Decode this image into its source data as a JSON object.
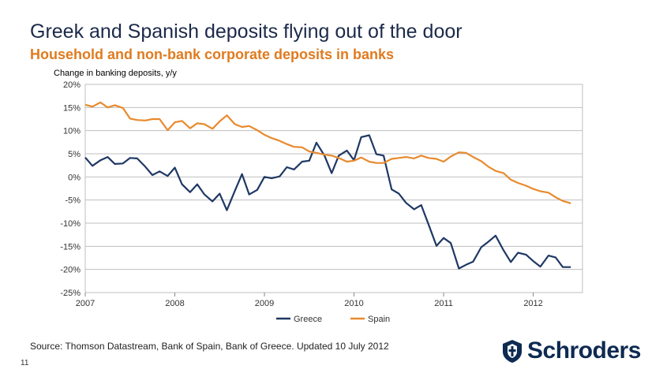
{
  "slide": {
    "title": "Greek and Spanish deposits flying out of the door",
    "subtitle": "Household and non-bank corporate deposits in banks",
    "source": "Source: Thomson Datastream, Bank of Spain, Bank of Greece. Updated 10 July 2012",
    "page_number": "11",
    "logo_text": "Schroders"
  },
  "colors": {
    "greece": "#1f3864",
    "spain": "#e88a2e",
    "grid": "#bfbfbf",
    "axis_text": "#333333"
  },
  "chart_data": {
    "type": "line",
    "title": "",
    "ylabel": "Change in banking deposits, y/y",
    "xlabel": "",
    "ylim": [
      -25,
      20
    ],
    "xlim": [
      2007,
      2012.55
    ],
    "yticks": [
      20,
      15,
      10,
      5,
      0,
      -5,
      -10,
      -15,
      -20,
      -25
    ],
    "ytick_labels": [
      "20%",
      "15%",
      "10%",
      "5%",
      "0%",
      "-5%",
      "-10%",
      "-15%",
      "-20%",
      "-25%"
    ],
    "xticks": [
      2007,
      2008,
      2009,
      2010,
      2011,
      2012
    ],
    "xtick_labels": [
      "2007",
      "2008",
      "2009",
      "2010",
      "2011",
      "2012"
    ],
    "grid": "horizontal",
    "legend_position": "bottom",
    "series": [
      {
        "name": "Greece",
        "x": [
          2007.0,
          2007.08,
          2007.17,
          2007.25,
          2007.33,
          2007.42,
          2007.5,
          2007.58,
          2007.67,
          2007.75,
          2007.83,
          2007.92,
          2008.0,
          2008.08,
          2008.17,
          2008.25,
          2008.33,
          2008.42,
          2008.5,
          2008.58,
          2008.67,
          2008.75,
          2008.83,
          2008.92,
          2009.0,
          2009.08,
          2009.17,
          2009.25,
          2009.33,
          2009.42,
          2009.5,
          2009.58,
          2009.67,
          2009.75,
          2009.83,
          2009.92,
          2010.0,
          2010.08,
          2010.17,
          2010.25,
          2010.33,
          2010.42,
          2010.5,
          2010.58,
          2010.67,
          2010.75,
          2010.83,
          2010.92,
          2011.0,
          2011.08,
          2011.17,
          2011.25,
          2011.33,
          2011.42,
          2011.5,
          2011.58,
          2011.67,
          2011.75,
          2011.83,
          2011.92,
          2012.0,
          2012.08,
          2012.17,
          2012.25,
          2012.33,
          2012.42
        ],
        "values": [
          4.2,
          2.4,
          3.6,
          4.3,
          2.8,
          2.9,
          4.1,
          4.0,
          2.2,
          0.4,
          1.2,
          0.2,
          2.0,
          -1.6,
          -3.3,
          -1.6,
          -3.8,
          -5.3,
          -3.6,
          -7.2,
          -3.0,
          0.6,
          -3.8,
          -2.8,
          0.0,
          -0.3,
          0.1,
          2.1,
          1.6,
          3.3,
          3.5,
          7.4,
          4.6,
          0.8,
          4.6,
          5.7,
          3.6,
          8.6,
          9.0,
          4.9,
          4.6,
          -2.7,
          -3.6,
          -5.6,
          -7.0,
          -6.1,
          -10.2,
          -14.9,
          -13.2,
          -14.3,
          -19.8,
          -19.0,
          -18.3,
          -15.2,
          -14.0,
          -12.7,
          -15.9,
          -18.4,
          -16.4,
          -16.8,
          -18.2,
          -19.4,
          -17.0,
          -17.4,
          -19.5,
          -19.5
        ]
      },
      {
        "name": "Spain",
        "x": [
          2007.0,
          2007.08,
          2007.17,
          2007.25,
          2007.33,
          2007.42,
          2007.5,
          2007.58,
          2007.67,
          2007.75,
          2007.83,
          2007.92,
          2008.0,
          2008.08,
          2008.17,
          2008.25,
          2008.33,
          2008.42,
          2008.5,
          2008.58,
          2008.67,
          2008.75,
          2008.83,
          2008.92,
          2009.0,
          2009.08,
          2009.17,
          2009.25,
          2009.33,
          2009.42,
          2009.5,
          2009.58,
          2009.67,
          2009.75,
          2009.83,
          2009.92,
          2010.0,
          2010.08,
          2010.17,
          2010.25,
          2010.33,
          2010.42,
          2010.5,
          2010.58,
          2010.67,
          2010.75,
          2010.83,
          2010.92,
          2011.0,
          2011.08,
          2011.17,
          2011.25,
          2011.33,
          2011.42,
          2011.5,
          2011.58,
          2011.67,
          2011.75,
          2011.83,
          2011.92,
          2012.0,
          2012.08,
          2012.17,
          2012.25,
          2012.33,
          2012.42
        ],
        "values": [
          15.6,
          15.2,
          16.1,
          15.0,
          15.5,
          14.9,
          12.6,
          12.3,
          12.2,
          12.5,
          12.5,
          10.1,
          11.8,
          12.1,
          10.5,
          11.6,
          11.4,
          10.4,
          12.0,
          13.3,
          11.4,
          10.8,
          11.0,
          10.1,
          9.1,
          8.4,
          7.8,
          7.1,
          6.5,
          6.4,
          5.5,
          5.2,
          4.8,
          4.6,
          4.1,
          3.3,
          3.5,
          4.2,
          3.3,
          3.0,
          3.0,
          3.9,
          4.1,
          4.3,
          4.0,
          4.6,
          4.1,
          3.9,
          3.3,
          4.4,
          5.3,
          5.2,
          4.3,
          3.4,
          2.2,
          1.3,
          0.8,
          -0.6,
          -1.3,
          -1.9,
          -2.6,
          -3.1,
          -3.4,
          -4.4,
          -5.2,
          -5.7
        ]
      }
    ]
  }
}
